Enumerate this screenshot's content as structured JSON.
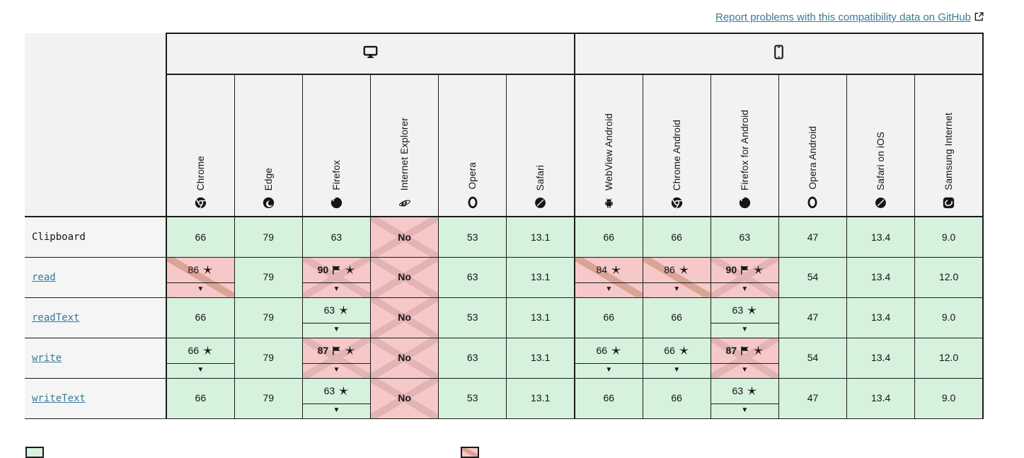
{
  "report_link": {
    "label": "Report problems with this compatibility data on GitHub",
    "icon": "external-link-icon"
  },
  "colors": {
    "link": "#3b7a97",
    "support_yes_bg": "#d6f1dc",
    "support_no_bg": "#f6c9c8",
    "partial_stripe": "#d9a395",
    "cross_stripe": "#e2b4b4",
    "header_bg": "#f2f2f3",
    "feature_bg": "#f5f5f6",
    "border": "#1b1b1b",
    "text": "#15141a"
  },
  "icons": {
    "expand-icon": "▼"
  },
  "groups": [
    {
      "id": "desktop",
      "icon": "desktop-icon",
      "browsers": [
        {
          "id": "chrome",
          "name": "Chrome",
          "icon": "chrome-icon"
        },
        {
          "id": "edge",
          "name": "Edge",
          "icon": "edge-icon"
        },
        {
          "id": "firefox",
          "name": "Firefox",
          "icon": "firefox-icon"
        },
        {
          "id": "ie",
          "name": "Internet Explorer",
          "icon": "ie-icon"
        },
        {
          "id": "opera",
          "name": "Opera",
          "icon": "opera-icon"
        },
        {
          "id": "safari",
          "name": "Safari",
          "icon": "safari-icon"
        }
      ]
    },
    {
      "id": "mobile",
      "icon": "mobile-icon",
      "browsers": [
        {
          "id": "webview-android",
          "name": "WebView Android",
          "icon": "android-icon"
        },
        {
          "id": "chrome-android",
          "name": "Chrome Android",
          "icon": "chrome-icon"
        },
        {
          "id": "firefox-android",
          "name": "Firefox for Android",
          "icon": "firefox-icon"
        },
        {
          "id": "opera-android",
          "name": "Opera Android",
          "icon": "opera-icon"
        },
        {
          "id": "safari-ios",
          "name": "Safari on iOS",
          "icon": "safari-icon"
        },
        {
          "id": "samsung-internet",
          "name": "Samsung Internet",
          "icon": "samsung-icon"
        }
      ]
    }
  ],
  "rows": [
    {
      "feature": "Clipboard",
      "is_link": false,
      "cells": [
        {
          "value": "66",
          "support": "yes"
        },
        {
          "value": "79",
          "support": "yes"
        },
        {
          "value": "63",
          "support": "yes"
        },
        {
          "value": "No",
          "support": "no"
        },
        {
          "value": "53",
          "support": "yes"
        },
        {
          "value": "13.1",
          "support": "yes"
        },
        {
          "value": "66",
          "support": "yes"
        },
        {
          "value": "66",
          "support": "yes"
        },
        {
          "value": "63",
          "support": "yes"
        },
        {
          "value": "47",
          "support": "yes"
        },
        {
          "value": "13.4",
          "support": "yes"
        },
        {
          "value": "9.0",
          "support": "yes"
        }
      ]
    },
    {
      "feature": "read",
      "is_link": true,
      "cells": [
        {
          "value": "86",
          "support": "partial",
          "star": true,
          "expandable": true
        },
        {
          "value": "79",
          "support": "yes"
        },
        {
          "value": "90",
          "support": "flagged",
          "flag": true,
          "star": true,
          "expandable": true,
          "bold": true
        },
        {
          "value": "No",
          "support": "no"
        },
        {
          "value": "63",
          "support": "yes"
        },
        {
          "value": "13.1",
          "support": "yes"
        },
        {
          "value": "84",
          "support": "partial",
          "star": true,
          "expandable": true
        },
        {
          "value": "86",
          "support": "partial",
          "star": true,
          "expandable": true
        },
        {
          "value": "90",
          "support": "flagged",
          "flag": true,
          "star": true,
          "expandable": true,
          "bold": true
        },
        {
          "value": "54",
          "support": "yes"
        },
        {
          "value": "13.4",
          "support": "yes"
        },
        {
          "value": "12.0",
          "support": "yes"
        }
      ]
    },
    {
      "feature": "readText",
      "is_link": true,
      "cells": [
        {
          "value": "66",
          "support": "yes"
        },
        {
          "value": "79",
          "support": "yes"
        },
        {
          "value": "63",
          "support": "yes",
          "star": true,
          "expandable": true
        },
        {
          "value": "No",
          "support": "no"
        },
        {
          "value": "53",
          "support": "yes"
        },
        {
          "value": "13.1",
          "support": "yes"
        },
        {
          "value": "66",
          "support": "yes"
        },
        {
          "value": "66",
          "support": "yes"
        },
        {
          "value": "63",
          "support": "yes",
          "star": true,
          "expandable": true
        },
        {
          "value": "47",
          "support": "yes"
        },
        {
          "value": "13.4",
          "support": "yes"
        },
        {
          "value": "9.0",
          "support": "yes"
        }
      ]
    },
    {
      "feature": "write",
      "is_link": true,
      "cells": [
        {
          "value": "66",
          "support": "yes",
          "star": true,
          "expandable": true
        },
        {
          "value": "79",
          "support": "yes"
        },
        {
          "value": "87",
          "support": "flagged",
          "flag": true,
          "star": true,
          "expandable": true,
          "bold": true
        },
        {
          "value": "No",
          "support": "no"
        },
        {
          "value": "63",
          "support": "yes"
        },
        {
          "value": "13.1",
          "support": "yes"
        },
        {
          "value": "66",
          "support": "yes",
          "star": true,
          "expandable": true
        },
        {
          "value": "66",
          "support": "yes",
          "star": true,
          "expandable": true
        },
        {
          "value": "87",
          "support": "flagged",
          "flag": true,
          "star": true,
          "expandable": true,
          "bold": true
        },
        {
          "value": "54",
          "support": "yes"
        },
        {
          "value": "13.4",
          "support": "yes"
        },
        {
          "value": "12.0",
          "support": "yes"
        }
      ]
    },
    {
      "feature": "writeText",
      "is_link": true,
      "cells": [
        {
          "value": "66",
          "support": "yes"
        },
        {
          "value": "79",
          "support": "yes"
        },
        {
          "value": "63",
          "support": "yes",
          "star": true,
          "expandable": true
        },
        {
          "value": "No",
          "support": "no"
        },
        {
          "value": "53",
          "support": "yes"
        },
        {
          "value": "13.1",
          "support": "yes"
        },
        {
          "value": "66",
          "support": "yes"
        },
        {
          "value": "66",
          "support": "yes"
        },
        {
          "value": "63",
          "support": "yes",
          "star": true,
          "expandable": true
        },
        {
          "value": "47",
          "support": "yes"
        },
        {
          "value": "13.4",
          "support": "yes"
        },
        {
          "value": "9.0",
          "support": "yes"
        }
      ]
    }
  ],
  "legend": {
    "swatches": [
      "full-support",
      "partial-support"
    ]
  }
}
